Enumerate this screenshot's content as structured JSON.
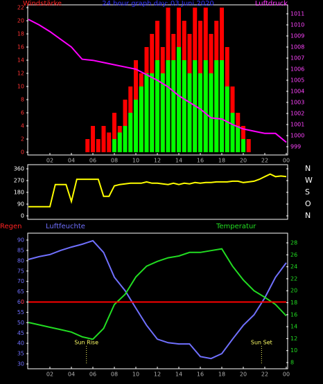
{
  "chart_data": [
    {
      "type": "bar",
      "title": "24 hour graph day: 03 Juni 2020",
      "ylabel": "Windstärke",
      "y2label": "Luftdruck",
      "xlim": [
        0,
        24
      ],
      "xticks": [
        {
          "value": 2,
          "label": "02"
        },
        {
          "value": 4,
          "label": "04"
        },
        {
          "value": 6,
          "label": "06"
        },
        {
          "value": 8,
          "label": "08"
        },
        10,
        12,
        14,
        16,
        18,
        20,
        22,
        {
          "value": 24,
          "label": "00"
        }
      ],
      "ylim": [
        0,
        22
      ],
      "yticks": [
        0,
        2,
        4,
        6,
        8,
        10,
        12,
        14,
        16,
        18,
        20,
        22
      ],
      "y2lim": [
        998.5,
        1011.56
      ],
      "y2ticks": [
        999,
        1000,
        1001,
        1002,
        1003,
        1004,
        1005,
        1006,
        1007,
        1008,
        1009,
        1010,
        1011
      ],
      "series": [
        {
          "type": "bar",
          "color": "#ff0000",
          "x": [
            0,
            0.5,
            1,
            1.5,
            2,
            2.5,
            3,
            3.5,
            4,
            4.5,
            5,
            5.5,
            6,
            6.5,
            7,
            7.5,
            8,
            8.5,
            9,
            9.5,
            10,
            10.5,
            11,
            11.5,
            12,
            12.5,
            13,
            13.5,
            14,
            14.5,
            15,
            15.5,
            16,
            16.5,
            17,
            17.5,
            18,
            18.5,
            19,
            19.5,
            20,
            20.5,
            21,
            21.5,
            22,
            22.5,
            23,
            23.5,
            24
          ],
          "values": [
            0,
            0,
            0,
            0,
            0,
            0,
            0,
            0,
            0,
            0,
            0,
            2,
            4,
            2,
            4,
            3,
            6,
            4,
            8,
            10,
            14,
            12,
            16,
            18,
            20,
            16,
            22,
            18,
            22,
            20,
            18,
            22,
            20,
            22,
            18,
            20,
            22,
            16,
            10,
            6,
            4,
            2,
            0,
            0,
            0,
            0,
            0,
            0,
            0
          ]
        },
        {
          "type": "bar",
          "color": "#00ff00",
          "x": [
            0,
            0.5,
            1,
            1.5,
            2,
            2.5,
            3,
            3.5,
            4,
            4.5,
            5,
            5.5,
            6,
            6.5,
            7,
            7.5,
            8,
            8.5,
            9,
            9.5,
            10,
            10.5,
            11,
            11.5,
            12,
            12.5,
            13,
            13.5,
            14,
            14.5,
            15,
            15.5,
            16,
            16.5,
            17,
            17.5,
            18,
            18.5,
            19,
            19.5,
            20,
            20.5,
            21,
            21.5,
            22,
            22.5,
            23,
            23.5,
            24
          ],
          "values": [
            0,
            0,
            0,
            0,
            0,
            0,
            0,
            0,
            0,
            0,
            0,
            0,
            0,
            0,
            0,
            0,
            2,
            3,
            4,
            6,
            8,
            10,
            12,
            12,
            14,
            12,
            14,
            14,
            16,
            14,
            12,
            14,
            12,
            14,
            12,
            14,
            14,
            10,
            6,
            4,
            2,
            0,
            0,
            0,
            0,
            0,
            0,
            0,
            0
          ]
        },
        {
          "type": "line",
          "axis": "y2",
          "color": "#ff00ff",
          "x": [
            0,
            1,
            2,
            3,
            4,
            5,
            6,
            7,
            8,
            9,
            10,
            11,
            12,
            13,
            14,
            15,
            16,
            17,
            18,
            19,
            20,
            21,
            22,
            23,
            24
          ],
          "values": [
            1010.5,
            1010,
            1009.4,
            1008.7,
            1008,
            1006.9,
            1006.8,
            1006.6,
            1006.4,
            1006.2,
            1006,
            1005.5,
            1005,
            1004.4,
            1003.6,
            1003,
            1002.4,
            1001.6,
            1001.5,
            1001,
            1000.6,
            1000.4,
            1000.2,
            1000.2,
            999.4
          ]
        }
      ]
    },
    {
      "type": "line",
      "xlim": [
        0,
        24
      ],
      "ylim": [
        0,
        360
      ],
      "yticks": [
        0,
        90,
        180,
        270,
        360
      ],
      "y2lim": [
        0,
        360
      ],
      "y2ticks": [
        {
          "value": 0,
          "label": "N"
        },
        {
          "value": 90,
          "label": "O"
        },
        {
          "value": 180,
          "label": "S"
        },
        {
          "value": 270,
          "label": "W"
        },
        {
          "value": 360,
          "label": "N"
        }
      ],
      "series": [
        {
          "type": "line",
          "color": "#ffff00",
          "x": [
            0,
            0.5,
            1,
            1.5,
            2,
            2.5,
            3,
            3.5,
            4,
            4.5,
            5,
            5.5,
            6,
            6.5,
            7,
            7.5,
            8,
            8.5,
            9,
            9.5,
            10,
            10.5,
            11,
            11.5,
            12,
            12.5,
            13,
            13.5,
            14,
            14.5,
            15,
            15.5,
            16,
            16.5,
            17,
            17.5,
            18,
            18.5,
            19,
            19.5,
            20,
            20.5,
            21,
            21.5,
            22,
            22.5,
            23,
            23.5,
            24
          ],
          "values": [
            70,
            70,
            70,
            70,
            70,
            240,
            240,
            240,
            110,
            280,
            280,
            280,
            280,
            280,
            150,
            150,
            230,
            240,
            245,
            250,
            250,
            250,
            260,
            250,
            250,
            245,
            240,
            250,
            240,
            250,
            245,
            255,
            250,
            255,
            255,
            260,
            260,
            260,
            265,
            265,
            255,
            260,
            265,
            280,
            300,
            320,
            300,
            305,
            300
          ]
        }
      ]
    },
    {
      "type": "line",
      "ylabel": "Luftfeuchte",
      "y2label": "Temperatur",
      "y3label": "Regen",
      "xlim": [
        0,
        24
      ],
      "xticks": [
        {
          "value": 2,
          "label": "02"
        },
        {
          "value": 4,
          "label": "04"
        },
        {
          "value": 6,
          "label": "06"
        },
        {
          "value": 8,
          "label": "08"
        },
        10,
        12,
        14,
        16,
        18,
        20,
        22,
        {
          "value": 24,
          "label": "00"
        }
      ],
      "ylim": [
        30,
        90
      ],
      "yticks": [
        30,
        35,
        40,
        45,
        50,
        55,
        60,
        65,
        70,
        75,
        80,
        85,
        90
      ],
      "y2lim": [
        7.77,
        28.46
      ],
      "y2ticks": [
        8,
        10,
        12,
        14,
        16,
        18,
        20,
        22,
        24,
        26,
        28
      ],
      "y3lim": [
        -3,
        3
      ],
      "y3ticks": [
        0
      ],
      "annotations": [
        {
          "text": "Sun Rise",
          "x": 5.4
        },
        {
          "text": "Sun Set",
          "x": 21.7
        }
      ],
      "series": [
        {
          "type": "line",
          "color": "#7070ff",
          "x": [
            0,
            1,
            2,
            3,
            4,
            5,
            6,
            7,
            8,
            9,
            10,
            11,
            12,
            13,
            14,
            15,
            16,
            17,
            18,
            19,
            20,
            21,
            22,
            23,
            24
          ],
          "values": [
            80.6,
            82,
            83,
            85,
            86.6,
            88,
            89.7,
            84,
            72,
            65.5,
            57,
            48.7,
            42,
            40.3,
            39.7,
            39.7,
            33.6,
            32.6,
            35,
            42,
            48.7,
            53.8,
            62,
            72,
            79
          ]
        },
        {
          "type": "line",
          "axis": "y2",
          "color": "#22dd22",
          "x": [
            0,
            1,
            2,
            3,
            4,
            5,
            6,
            7,
            8,
            9,
            10,
            11,
            12,
            13,
            14,
            15,
            16,
            17,
            18,
            19,
            20,
            21,
            22,
            23,
            24
          ],
          "values": [
            14.7,
            14.3,
            13.9,
            13.5,
            13.1,
            12.3,
            11.9,
            13.7,
            17.7,
            19.4,
            22.3,
            24.1,
            24.9,
            25.5,
            25.8,
            26.4,
            26.4,
            26.7,
            27,
            24.1,
            21.8,
            20,
            18.9,
            17.7,
            15.8
          ]
        },
        {
          "type": "line",
          "axis": "y3",
          "color": "#ff0000",
          "x": [
            0,
            24
          ],
          "values": [
            0,
            0
          ]
        }
      ]
    }
  ]
}
